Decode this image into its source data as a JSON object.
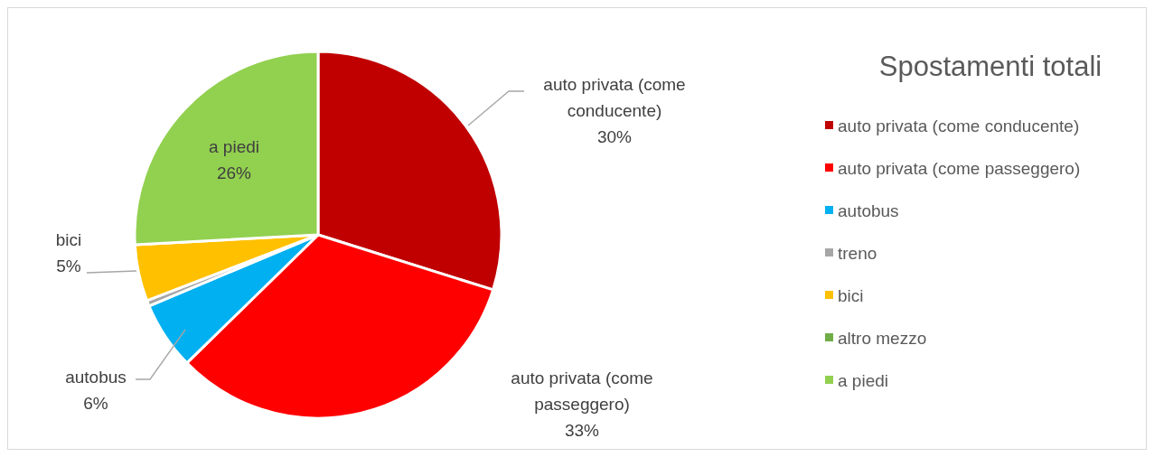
{
  "chart_data": {
    "type": "pie",
    "title": "Spostamenti totali",
    "categories": [
      "auto privata (come conducente)",
      "auto privata (come passeggero)",
      "autobus",
      "treno",
      "bici",
      "altro mezzo",
      "a piedi"
    ],
    "values": [
      30,
      33,
      6,
      0.5,
      5,
      null,
      26
    ],
    "colors": [
      "#c00000",
      "#ff0000",
      "#00b0f0",
      "#a6a6a6",
      "#ffc000",
      "#70ad47",
      "#92d050"
    ],
    "value_labels": [
      "30%",
      "33%",
      "6%",
      null,
      "5%",
      null,
      "26%"
    ],
    "legend": "right"
  }
}
